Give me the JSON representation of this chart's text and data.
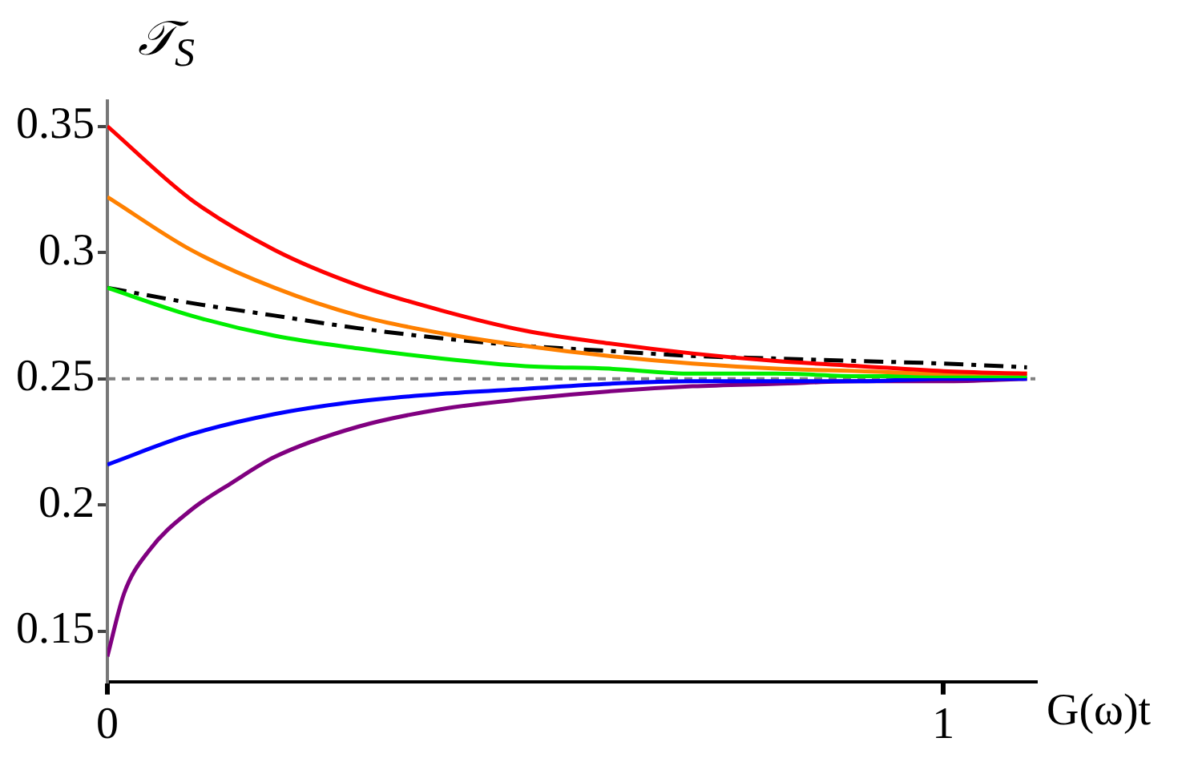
{
  "chart_data": {
    "type": "line",
    "xlabel": "G(ω)t",
    "ylabel": "𝒯$_{S}$",
    "x": [
      0,
      0.1,
      0.2,
      0.3,
      0.4,
      0.5,
      0.6,
      0.7,
      0.8,
      0.9,
      1.0,
      1.1
    ],
    "series": [
      {
        "color": "#ff0000",
        "values": [
          0.35,
          0.321,
          0.301,
          0.287,
          0.277,
          0.269,
          0.264,
          0.26,
          0.257,
          0.255,
          0.253,
          0.252
        ]
      },
      {
        "color": "#ff8000",
        "values": [
          0.322,
          0.301,
          0.286,
          0.275,
          0.268,
          0.263,
          0.259,
          0.256,
          0.254,
          0.253,
          0.252,
          0.252
        ]
      },
      {
        "color": "#00ee00",
        "values": [
          0.286,
          0.275,
          0.267,
          0.262,
          0.258,
          0.255,
          0.254,
          0.252,
          0.252,
          0.251,
          0.251,
          0.251
        ]
      },
      {
        "color": "#0000ff",
        "values": [
          0.216,
          0.228,
          0.236,
          0.241,
          0.244,
          0.246,
          0.248,
          0.249,
          0.249,
          0.249,
          0.25,
          0.25
        ]
      },
      {
        "color": "#800080",
        "x": [
          0,
          0.02,
          0.05,
          0.1,
          0.15,
          0.2,
          0.3,
          0.4,
          0.5,
          0.6,
          0.7,
          0.8,
          0.9,
          1.0,
          1.1
        ],
        "values": [
          0.14,
          0.165,
          0.182,
          0.198,
          0.209,
          0.219,
          0.231,
          0.238,
          0.242,
          0.245,
          0.247,
          0.248,
          0.249,
          0.249,
          0.25
        ]
      },
      {
        "color": "#000000",
        "line_style": "dashed",
        "values": [
          0.286,
          0.28,
          0.275,
          0.27,
          0.266,
          0.263,
          0.261,
          0.259,
          0.258,
          0.257,
          0.256,
          0.2545
        ]
      }
    ],
    "xlim": [
      0,
      1.11
    ],
    "xticks": [
      0,
      1
    ],
    "ylim": [
      0.13,
      0.36
    ],
    "yticks": [
      0.15,
      0.2,
      0.25,
      0.3,
      0.35
    ],
    "ref_lines": [
      {
        "axis": "y",
        "value": 0.25,
        "color": "#808080",
        "line_style": "dotted"
      }
    ],
    "grid": false,
    "legend": false,
    "marker": "none",
    "line_style": "solid"
  }
}
